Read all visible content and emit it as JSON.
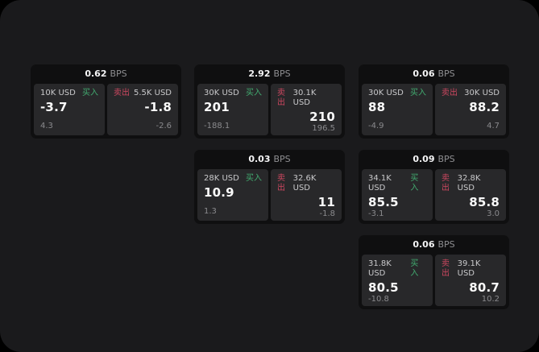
{
  "labels": {
    "bps_unit": "BPS",
    "buy": "买入",
    "sell": "卖出"
  },
  "colors": {
    "buy_green": "#42ab70",
    "sell_red": "#cd4760",
    "screen_bg": "#1a1a1c",
    "card_bg": "#0f0f10",
    "panel_bg": "#28282a"
  },
  "cards": [
    {
      "bps": "0.62",
      "buy": {
        "amount": "10K USD",
        "value": "-3.7",
        "delta": "4.3"
      },
      "sell": {
        "amount": "5.5K USD",
        "value": "-1.8",
        "delta": "-2.6"
      }
    },
    {
      "bps": "2.92",
      "buy": {
        "amount": "30K USD",
        "value": "201",
        "delta": "-188.1"
      },
      "sell": {
        "amount": "30.1K USD",
        "value": "210",
        "delta": "196.5"
      }
    },
    {
      "bps": "0.06",
      "buy": {
        "amount": "30K USD",
        "value": "88",
        "delta": "-4.9"
      },
      "sell": {
        "amount": "30K USD",
        "value": "88.2",
        "delta": "4.7"
      }
    },
    {
      "bps": "0.03",
      "buy": {
        "amount": "28K USD",
        "value": "10.9",
        "delta": "1.3"
      },
      "sell": {
        "amount": "32.6K USD",
        "value": "11",
        "delta": "-1.8"
      }
    },
    {
      "bps": "0.09",
      "buy": {
        "amount": "34.1K USD",
        "value": "85.5",
        "delta": "-3.1"
      },
      "sell": {
        "amount": "32.8K USD",
        "value": "85.8",
        "delta": "3.0"
      }
    },
    {
      "bps": "0.06",
      "buy": {
        "amount": "31.8K USD",
        "value": "80.5",
        "delta": "-10.8"
      },
      "sell": {
        "amount": "39.1K USD",
        "value": "80.7",
        "delta": "10.2"
      }
    }
  ]
}
